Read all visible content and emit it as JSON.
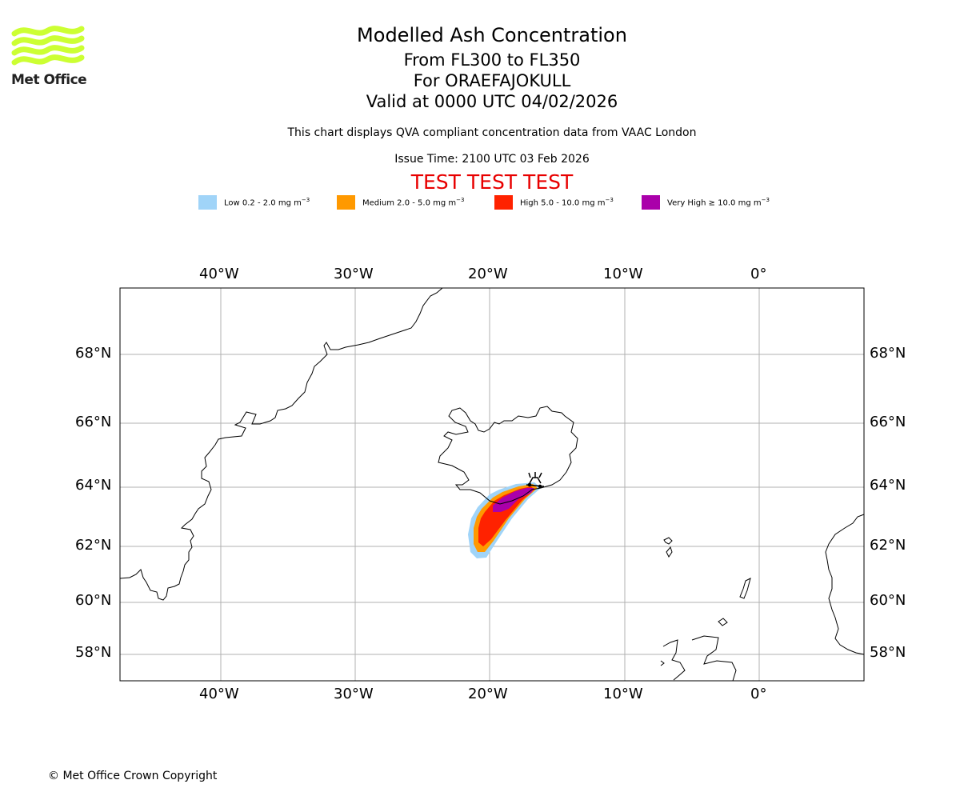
{
  "branding": {
    "logo_text": "Met Office",
    "logo_color": "#ccff33",
    "copyright": "© Met Office Crown Copyright"
  },
  "header": {
    "title": "Modelled Ash Concentration",
    "levels": "From FL300 to FL350",
    "volcano": "For ORAEFAJOKULL",
    "valid": "Valid at 0000 UTC 04/02/2026",
    "description": "This chart displays QVA compliant concentration data from VAAC London",
    "issue_time": "Issue Time: 2100 UTC 03 Feb 2026",
    "test_banner": "TEST TEST TEST",
    "test_color": "#e80000"
  },
  "legend": [
    {
      "label": "Low 0.2 - 2.0 mg m",
      "unit_exp": "−3",
      "color": "#a0d4f8"
    },
    {
      "label": "Medium 2.0 - 5.0 mg m",
      "unit_exp": "−3",
      "color": "#ff9900"
    },
    {
      "label": "High 5.0 - 10.0 mg m",
      "unit_exp": "−3",
      "color": "#ff2200"
    },
    {
      "label": "Very High  ≥  10.0 mg m",
      "unit_exp": "−3",
      "color": "#aa00aa"
    }
  ],
  "map": {
    "lon_labels": [
      "40°W",
      "30°W",
      "20°W",
      "10°W",
      "0°"
    ],
    "lat_labels": [
      "68°N",
      "66°N",
      "64°N",
      "62°N",
      "60°N",
      "58°N"
    ],
    "volcano_name": "ORAEFAJOKULL"
  }
}
